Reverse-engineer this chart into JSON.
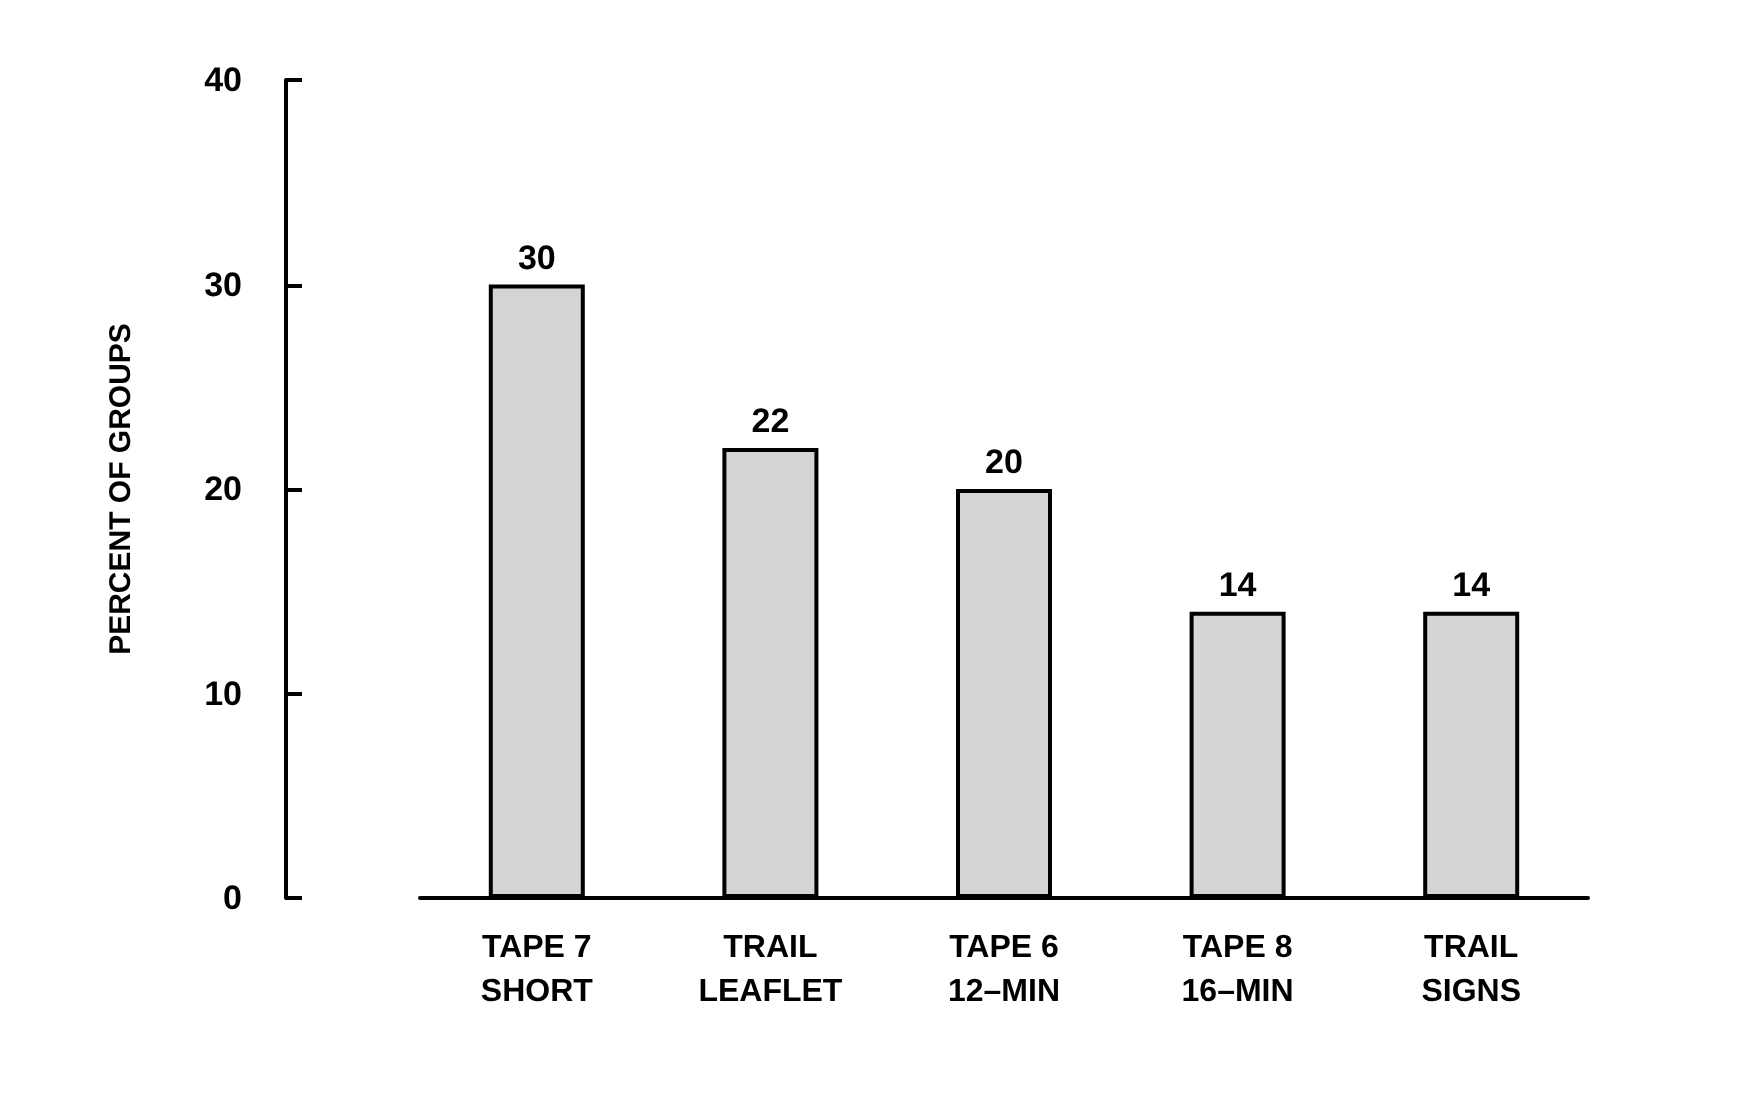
{
  "chart_data": {
    "type": "bar",
    "ylabel": "PERCENT OF GROUPS",
    "categories": [
      "TAPE 7\nSHORT",
      "TRAIL\nLEAFLET",
      "TAPE 6\n12–MIN",
      "TAPE 8\n16–MIN",
      "TRAIL\nSIGNS"
    ],
    "values": [
      30,
      22,
      20,
      14,
      14
    ],
    "color": "#d4d4d4",
    "ylim": [
      0,
      40
    ],
    "yticks": [
      0,
      10,
      20,
      30,
      40
    ],
    "grid": false,
    "data_labels": true
  }
}
